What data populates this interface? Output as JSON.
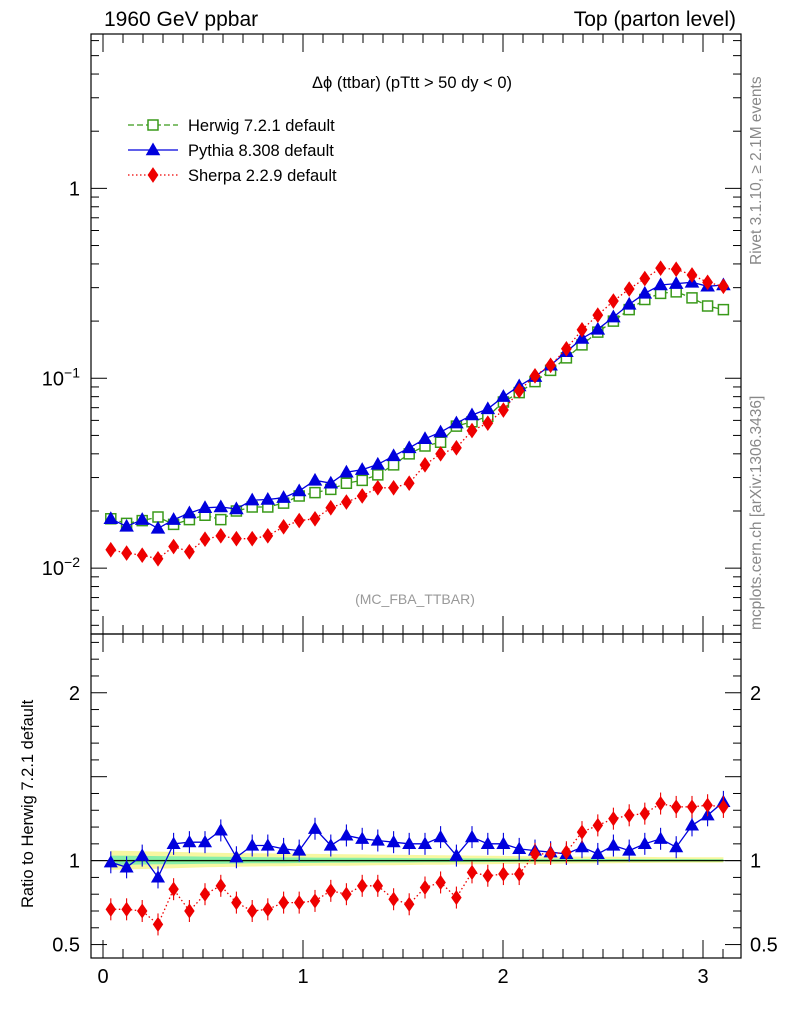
{
  "header": {
    "left": "1960 GeV ppbar",
    "right": "Top (parton level)"
  },
  "side_labels": {
    "rivet": "Rivet 3.1.10, ≥ 2.1M events",
    "mcplots": "mcplots.cern.ch [arXiv:1306.3436]"
  },
  "chart_data": [
    {
      "type": "line",
      "title": "Δϕ (ttbar) (pTtt > 50 dy < 0)",
      "watermark": "(MC_FBA_TTBAR)",
      "yscale": "log",
      "xlim": [
        -0.06,
        3.19
      ],
      "ylim": [
        0.0045,
        6.5
      ],
      "yticks": [
        {
          "value": 1,
          "label": "1"
        },
        {
          "value": 0.1,
          "label": "10^-1"
        },
        {
          "value": 0.01,
          "label": "10^-2"
        }
      ],
      "legend_position": "top-left",
      "x": [
        0.039,
        0.118,
        0.196,
        0.275,
        0.353,
        0.432,
        0.51,
        0.589,
        0.667,
        0.746,
        0.824,
        0.903,
        0.981,
        1.06,
        1.139,
        1.217,
        1.296,
        1.374,
        1.453,
        1.531,
        1.61,
        1.688,
        1.767,
        1.845,
        1.924,
        2.002,
        2.081,
        2.16,
        2.238,
        2.317,
        2.395,
        2.474,
        2.552,
        2.631,
        2.709,
        2.788,
        2.866,
        2.945,
        3.023,
        3.102
      ],
      "series": [
        {
          "name": "Herwig 7.2.1 default",
          "color": "#3a9a1a",
          "marker": "open-square",
          "line": "dashed",
          "values": [
            0.0182,
            0.0172,
            0.0178,
            0.0186,
            0.017,
            0.018,
            0.019,
            0.018,
            0.02,
            0.021,
            0.021,
            0.022,
            0.024,
            0.025,
            0.026,
            0.028,
            0.029,
            0.031,
            0.035,
            0.04,
            0.044,
            0.046,
            0.056,
            0.059,
            0.063,
            0.075,
            0.084,
            0.096,
            0.11,
            0.128,
            0.15,
            0.175,
            0.2,
            0.23,
            0.26,
            0.28,
            0.285,
            0.265,
            0.24,
            0.23
          ]
        },
        {
          "name": "Pythia 8.308 default",
          "color": "#0000dd",
          "marker": "filled-triangle",
          "line": "solid",
          "values": [
            0.0182,
            0.0166,
            0.018,
            0.0162,
            0.018,
            0.0195,
            0.0208,
            0.021,
            0.0205,
            0.0228,
            0.023,
            0.0235,
            0.0255,
            0.029,
            0.028,
            0.032,
            0.033,
            0.0352,
            0.039,
            0.043,
            0.048,
            0.052,
            0.058,
            0.064,
            0.069,
            0.08,
            0.091,
            0.102,
            0.117,
            0.138,
            0.162,
            0.181,
            0.21,
            0.245,
            0.28,
            0.31,
            0.315,
            0.32,
            0.305,
            0.31
          ]
        },
        {
          "name": "Sherpa 2.2.9 default",
          "color": "#ee0000",
          "marker": "filled-diamond",
          "line": "dotted",
          "values": [
            0.0125,
            0.012,
            0.0117,
            0.0112,
            0.013,
            0.0122,
            0.0142,
            0.0148,
            0.0143,
            0.0143,
            0.0148,
            0.0165,
            0.0178,
            0.0182,
            0.0208,
            0.0223,
            0.024,
            0.0265,
            0.0265,
            0.028,
            0.035,
            0.04,
            0.043,
            0.053,
            0.058,
            0.068,
            0.086,
            0.103,
            0.117,
            0.143,
            0.18,
            0.215,
            0.255,
            0.295,
            0.335,
            0.38,
            0.375,
            0.35,
            0.32,
            0.305
          ]
        }
      ]
    },
    {
      "type": "line",
      "ylabel": "Ratio to Herwig 7.2.1 default",
      "xlim": [
        -0.06,
        3.19
      ],
      "ylim": [
        0.42,
        2.35
      ],
      "xticks": [
        0,
        1,
        2,
        3
      ],
      "yticks": [
        0.5,
        1,
        2
      ],
      "reference": {
        "name": "Herwig 7.2.1 default",
        "value": 1,
        "color": "#3a9a1a"
      },
      "uncertainty_bands": [
        {
          "color": "#f7f7a0",
          "lower": [
            0.945,
            0.948,
            0.95,
            0.952,
            0.955,
            0.958,
            0.96,
            0.962,
            0.964,
            0.965,
            0.966,
            0.967,
            0.968,
            0.969,
            0.97,
            0.97,
            0.971,
            0.972,
            0.973,
            0.974,
            0.975,
            0.976,
            0.977,
            0.978,
            0.979,
            0.98,
            0.981,
            0.982,
            0.982,
            0.983,
            0.984,
            0.985,
            0.985,
            0.986,
            0.986,
            0.987,
            0.987,
            0.988,
            0.988,
            0.989
          ],
          "upper": [
            1.06,
            1.058,
            1.056,
            1.054,
            1.052,
            1.05,
            1.048,
            1.046,
            1.045,
            1.044,
            1.043,
            1.042,
            1.041,
            1.04,
            1.039,
            1.038,
            1.037,
            1.036,
            1.035,
            1.034,
            1.033,
            1.032,
            1.031,
            1.03,
            1.029,
            1.028,
            1.027,
            1.026,
            1.025,
            1.024,
            1.024,
            1.023,
            1.023,
            1.022,
            1.022,
            1.021,
            1.021,
            1.02,
            1.02,
            1.02
          ]
        },
        {
          "color": "#88eeaa",
          "lower": [
            0.975,
            0.976,
            0.977,
            0.978,
            0.979,
            0.98,
            0.981,
            0.982,
            0.983,
            0.984,
            0.985,
            0.985,
            0.986,
            0.986,
            0.987,
            0.987,
            0.988,
            0.988,
            0.989,
            0.989,
            0.99,
            0.99,
            0.991,
            0.991,
            0.992,
            0.992,
            0.993,
            0.993,
            0.993,
            0.994,
            0.994,
            0.994,
            0.995,
            0.995,
            0.995,
            0.995,
            0.996,
            0.996,
            0.996,
            0.996
          ],
          "upper": [
            1.03,
            1.029,
            1.028,
            1.027,
            1.026,
            1.025,
            1.024,
            1.023,
            1.022,
            1.021,
            1.02,
            1.019,
            1.019,
            1.018,
            1.018,
            1.017,
            1.017,
            1.016,
            1.016,
            1.015,
            1.015,
            1.014,
            1.014,
            1.013,
            1.013,
            1.012,
            1.012,
            1.011,
            1.011,
            1.011,
            1.01,
            1.01,
            1.01,
            1.01,
            1.009,
            1.009,
            1.009,
            1.009,
            1.008,
            1.008
          ]
        }
      ],
      "series": [
        {
          "name": "Pythia 8.308 default",
          "color": "#0000dd",
          "values": [
            0.99,
            0.96,
            1.03,
            0.9,
            1.1,
            1.11,
            1.11,
            1.18,
            1.02,
            1.09,
            1.09,
            1.07,
            1.06,
            1.19,
            1.09,
            1.15,
            1.13,
            1.12,
            1.11,
            1.1,
            1.1,
            1.14,
            1.03,
            1.14,
            1.1,
            1.1,
            1.07,
            1.06,
            1.05,
            1.04,
            1.08,
            1.04,
            1.09,
            1.06,
            1.1,
            1.13,
            1.08,
            1.21,
            1.27,
            1.35
          ]
        },
        {
          "name": "Sherpa 2.2.9 default",
          "color": "#ee0000",
          "values": [
            0.71,
            0.71,
            0.7,
            0.62,
            0.83,
            0.7,
            0.8,
            0.85,
            0.75,
            0.7,
            0.71,
            0.75,
            0.75,
            0.76,
            0.82,
            0.8,
            0.85,
            0.85,
            0.77,
            0.74,
            0.84,
            0.87,
            0.78,
            0.93,
            0.91,
            0.92,
            0.92,
            1.04,
            1.04,
            1.05,
            1.17,
            1.21,
            1.25,
            1.27,
            1.28,
            1.34,
            1.32,
            1.32,
            1.33,
            1.32
          ]
        }
      ]
    }
  ]
}
